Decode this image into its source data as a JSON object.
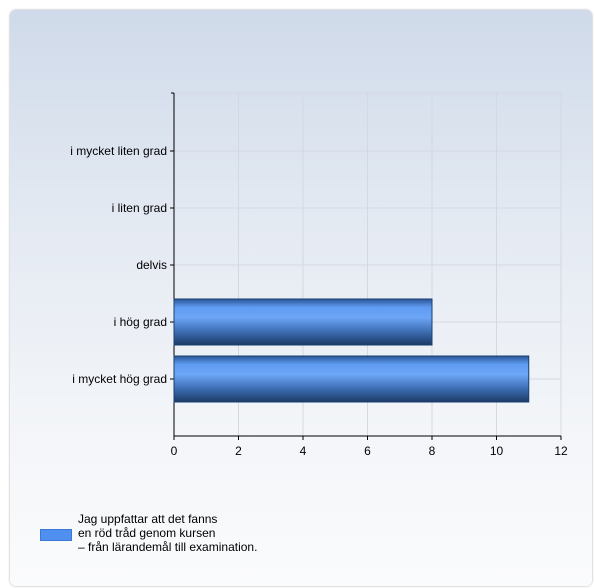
{
  "chart_data": {
    "type": "bar",
    "orientation": "horizontal",
    "categories": [
      "i mycket liten grad",
      "i liten grad",
      "delvis",
      "i hög grad",
      "i mycket hög grad"
    ],
    "series": [
      {
        "name": "Jag uppfattar att det fanns\nen röd tråd genom kursen\n– från lärandemål till examination.",
        "values": [
          0,
          0,
          0,
          8,
          11
        ]
      }
    ],
    "xlim": [
      0,
      12
    ],
    "xticks": [
      0,
      2,
      4,
      6,
      8,
      10,
      12
    ],
    "grid": true,
    "legend_position": "bottom-left",
    "colors": {
      "bar": "#4f8ff0",
      "bar_dark": "#1c3f6e"
    }
  }
}
